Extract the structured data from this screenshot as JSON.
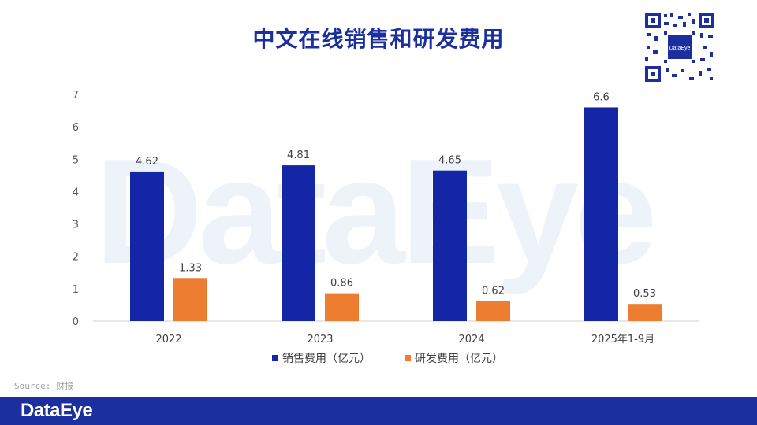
{
  "title": "中文在线销售和研发费用",
  "source": "Source: 财报",
  "brand": "DataEye",
  "qr_label": "DataEye",
  "chart_data": {
    "type": "bar",
    "categories": [
      "2022",
      "2023",
      "2024",
      "2025年1-9月"
    ],
    "series": [
      {
        "name": "销售费用（亿元）",
        "values": [
          4.62,
          4.81,
          4.65,
          6.6
        ],
        "labels": [
          "4.62",
          "4.81",
          "4.65",
          "6.6"
        ],
        "color": "#1226a6"
      },
      {
        "name": "研发费用（亿元）",
        "values": [
          1.33,
          0.86,
          0.62,
          0.53
        ],
        "labels": [
          "1.33",
          "0.86",
          "0.62",
          "0.53"
        ],
        "color": "#ed7d31"
      }
    ],
    "yticks": [
      "0",
      "1",
      "2",
      "3",
      "4",
      "5",
      "6",
      "7"
    ],
    "ylim": [
      0,
      7
    ],
    "grid": false,
    "legend": "bottom"
  }
}
